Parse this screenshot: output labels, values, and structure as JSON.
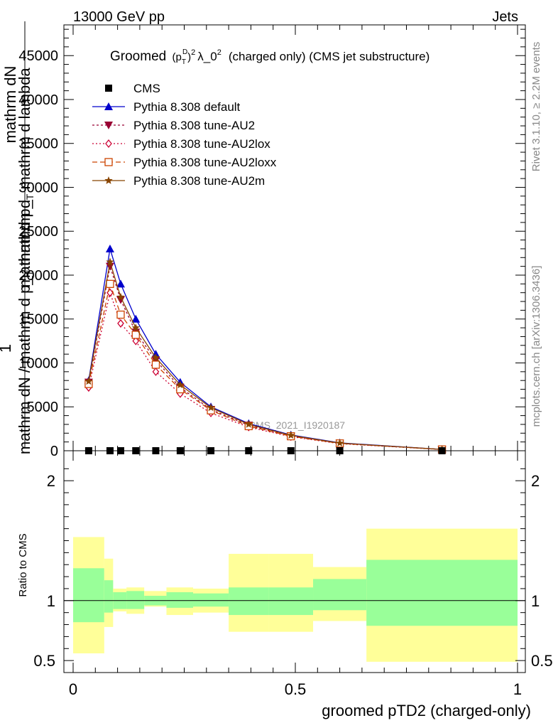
{
  "header": {
    "left": "13000 GeV pp",
    "right": "Jets"
  },
  "side_labels": {
    "rivet": "Rivet 3.1.10, ≥ 2.2M events",
    "mcplots": "mcplots.cern.ch [arXiv:1306.3436]"
  },
  "watermark": "CMS_2021_I1920187",
  "chart_data": [
    {
      "type": "line",
      "title": {
        "main": "Groomed",
        "formula": "(p",
        "sub_t": "T",
        "sup_d": "D",
        "close": ")",
        "sup_2": "2",
        "lambda": "λ_0",
        "sup_2b": "2",
        "suffix": "(charged only) (CMS jet substructure)"
      },
      "ylabel_top": "mathrm dN",
      "ylabel_mid": "mathrm d p_",
      "ylabel_mid_sub": "T",
      "ylabel_mid2": " mathrm d lambda",
      "ylabel_one": "1",
      "ylabel_bottom": "mathrm dN / mathrm d p_",
      "ylabel_bottom_sub": "T",
      "ylabel_bottom2": " mathrm d",
      "ylim": [
        0,
        48500
      ],
      "xlim": [
        0,
        1
      ],
      "y_ticks": [
        {
          "value": 0,
          "label": "0"
        },
        {
          "value": 5000,
          "label": "5000"
        },
        {
          "value": 10000,
          "label": "10000"
        },
        {
          "value": 15000,
          "label": "15000"
        },
        {
          "value": 20000,
          "label": "20000"
        },
        {
          "value": 25000,
          "label": "25000"
        },
        {
          "value": 30000,
          "label": "30000"
        },
        {
          "value": 35000,
          "label": "35000"
        },
        {
          "value": 40000,
          "label": "40000"
        },
        {
          "value": 45000,
          "label": "45000"
        }
      ],
      "legend_position": "top-left",
      "cms": {
        "name": "CMS",
        "color": "#000000",
        "x": [
          0.035,
          0.083,
          0.107,
          0.141,
          0.186,
          0.241,
          0.31,
          0.395,
          0.49,
          0.6,
          0.83
        ],
        "y": [
          0,
          0,
          0,
          0,
          0,
          0,
          0,
          0,
          0,
          0,
          0
        ]
      },
      "series": [
        {
          "name": "Pythia 8.308 default",
          "color": "#0000cc",
          "marker": "triangle-up",
          "dash": "",
          "x": [
            0.035,
            0.083,
            0.107,
            0.141,
            0.186,
            0.241,
            0.31,
            0.395,
            0.49,
            0.6,
            0.83
          ],
          "y": [
            8000,
            23000,
            19000,
            15000,
            11000,
            7800,
            5000,
            3100,
            1800,
            900,
            150
          ]
        },
        {
          "name": "Pythia 8.308 tune-AU2",
          "color": "#990033",
          "marker": "triangle-down",
          "dash": "3,3",
          "x": [
            0.035,
            0.083,
            0.107,
            0.141,
            0.186,
            0.241,
            0.31,
            0.395,
            0.49,
            0.6,
            0.83
          ],
          "y": [
            7800,
            21000,
            17200,
            13500,
            10300,
            7200,
            4700,
            2900,
            1700,
            850,
            150
          ]
        },
        {
          "name": "Pythia 8.308 tune-AU2lox",
          "color": "#cc0033",
          "marker": "diamond-open",
          "dash": "2,3",
          "x": [
            0.035,
            0.083,
            0.107,
            0.141,
            0.186,
            0.241,
            0.31,
            0.395,
            0.49,
            0.6,
            0.83
          ],
          "y": [
            7200,
            18000,
            14500,
            12500,
            9000,
            6500,
            4300,
            2700,
            1600,
            800,
            140
          ]
        },
        {
          "name": "Pythia 8.308 tune-AU2loxx",
          "color": "#cc4400",
          "marker": "square-open",
          "dash": "7,4",
          "x": [
            0.035,
            0.083,
            0.107,
            0.141,
            0.186,
            0.241,
            0.31,
            0.395,
            0.49,
            0.6,
            0.83
          ],
          "y": [
            7600,
            19000,
            15500,
            13200,
            9800,
            7000,
            4600,
            2800,
            1650,
            830,
            145
          ]
        },
        {
          "name": "Pythia 8.308 tune-AU2m",
          "color": "#884400",
          "marker": "star",
          "dash": "",
          "x": [
            0.035,
            0.083,
            0.107,
            0.141,
            0.186,
            0.241,
            0.31,
            0.395,
            0.49,
            0.6,
            0.83
          ],
          "y": [
            7900,
            21500,
            17500,
            14000,
            10600,
            7500,
            4900,
            3000,
            1750,
            870,
            150
          ]
        }
      ]
    },
    {
      "type": "area",
      "ylabel": "Ratio to CMS",
      "xlabel": "groomed pTD2 (charged-only)",
      "ylim": [
        0.4,
        2.25
      ],
      "xlim": [
        0,
        1
      ],
      "y_ticks": [
        {
          "value": 0.5,
          "label": "0.5"
        },
        {
          "value": 1,
          "label": "1"
        },
        {
          "value": 2,
          "label": "2"
        }
      ],
      "x_ticks": [
        {
          "value": 0,
          "label": "0"
        },
        {
          "value": 0.5,
          "label": "0.5"
        },
        {
          "value": 1,
          "label": "1"
        }
      ],
      "reference": 1,
      "inner_band_color": "#99ff99",
      "outer_band_color": "#ffff99",
      "bins": [
        {
          "x0": 0.0,
          "x1": 0.07,
          "outer_lo": 0.56,
          "outer_hi": 1.53,
          "inner_lo": 0.82,
          "inner_hi": 1.27
        },
        {
          "x0": 0.07,
          "x1": 0.09,
          "outer_lo": 0.78,
          "outer_hi": 1.35,
          "inner_lo": 0.9,
          "inner_hi": 1.17
        },
        {
          "x0": 0.09,
          "x1": 0.12,
          "outer_lo": 0.91,
          "outer_hi": 1.1,
          "inner_lo": 0.93,
          "inner_hi": 1.07
        },
        {
          "x0": 0.12,
          "x1": 0.16,
          "outer_lo": 0.89,
          "outer_hi": 1.11,
          "inner_lo": 0.93,
          "inner_hi": 1.08
        },
        {
          "x0": 0.16,
          "x1": 0.21,
          "outer_lo": 0.95,
          "outer_hi": 1.08,
          "inner_lo": 0.96,
          "inner_hi": 1.04
        },
        {
          "x0": 0.21,
          "x1": 0.27,
          "outer_lo": 0.88,
          "outer_hi": 1.11,
          "inner_lo": 0.94,
          "inner_hi": 1.07
        },
        {
          "x0": 0.27,
          "x1": 0.35,
          "outer_lo": 0.9,
          "outer_hi": 1.1,
          "inner_lo": 0.95,
          "inner_hi": 1.06
        },
        {
          "x0": 0.35,
          "x1": 0.44,
          "outer_lo": 0.74,
          "outer_hi": 1.39,
          "inner_lo": 0.88,
          "inner_hi": 1.11
        },
        {
          "x0": 0.44,
          "x1": 0.54,
          "outer_lo": 0.74,
          "outer_hi": 1.39,
          "inner_lo": 0.88,
          "inner_hi": 1.11
        },
        {
          "x0": 0.54,
          "x1": 0.66,
          "outer_lo": 0.83,
          "outer_hi": 1.28,
          "inner_lo": 0.92,
          "inner_hi": 1.18
        },
        {
          "x0": 0.66,
          "x1": 1.0,
          "outer_lo": 0.49,
          "outer_hi": 1.6,
          "inner_lo": 0.79,
          "inner_hi": 1.34
        }
      ]
    }
  ]
}
